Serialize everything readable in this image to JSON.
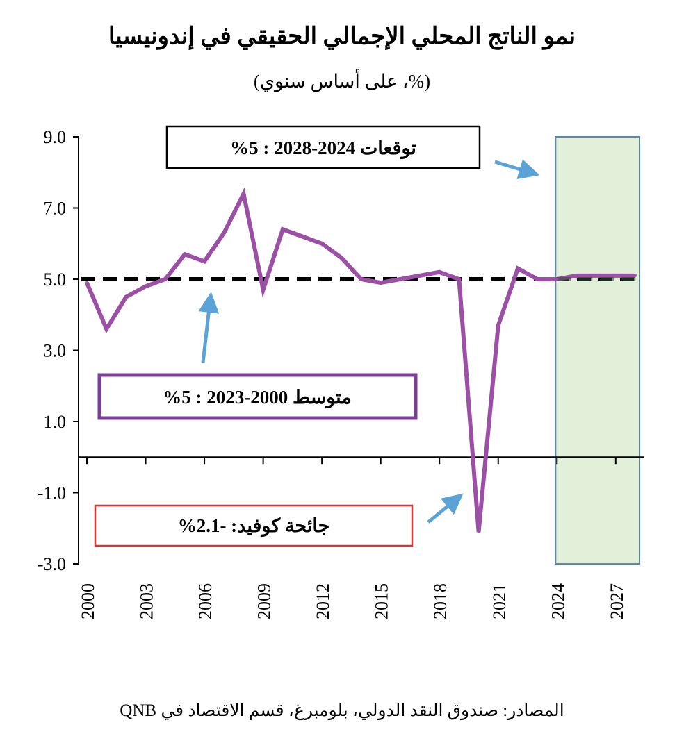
{
  "title": "نمو الناتج المحلي الإجمالي الحقيقي في إندونيسيا",
  "subtitle": "(%، على أساس سنوي)",
  "source": "المصادر: صندوق النقد الدولي، بلومبرغ، قسم الاقتصاد في QNB",
  "colors": {
    "series": "#9b4fa5",
    "average_line": "#000000",
    "forecast_fill": "#e2efd9",
    "forecast_border": "#5b86b5",
    "arrow": "#5ba3d6",
    "box_forecast": "#000000",
    "box_average": "#7b3f98",
    "box_covid": "#e03030"
  },
  "chart_data": {
    "type": "line",
    "x": [
      2000,
      2001,
      2002,
      2003,
      2004,
      2005,
      2006,
      2007,
      2008,
      2009,
      2010,
      2011,
      2012,
      2013,
      2014,
      2015,
      2016,
      2017,
      2018,
      2019,
      2020,
      2021,
      2022,
      2023,
      2024,
      2025,
      2026,
      2027,
      2028
    ],
    "series": [
      {
        "values": [
          4.9,
          3.6,
          4.5,
          4.8,
          5.0,
          5.7,
          5.5,
          6.3,
          7.4,
          4.7,
          6.4,
          6.2,
          6.0,
          5.6,
          5.0,
          4.9,
          5.0,
          5.1,
          5.2,
          5.0,
          -2.1,
          3.7,
          5.3,
          5.0,
          5.0,
          5.1,
          5.1,
          5.1,
          5.1
        ]
      }
    ],
    "average": 5.0,
    "forecast_range": [
      2024,
      2028
    ],
    "ylim": [
      -3.0,
      9.0
    ],
    "yticks": [
      "9.0",
      "7.0",
      "5.0",
      "3.0",
      "1.0",
      "-1.0",
      "-3.0"
    ],
    "xticks": [
      "2000",
      "2003",
      "2006",
      "2009",
      "2012",
      "2015",
      "2018",
      "2021",
      "2024",
      "2027"
    ],
    "xlabel": "",
    "ylabel": "",
    "grid": false,
    "annotations": {
      "forecast": "توقعات 2024-2028 : 5%",
      "average": "متوسط 2000-2023 : 5%",
      "covid": "جائحة كوفيد: -2.1%"
    }
  }
}
